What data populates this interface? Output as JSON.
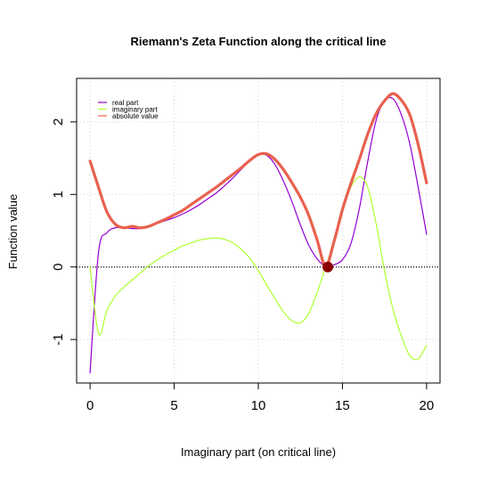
{
  "chart_data": {
    "type": "line",
    "title": "Riemann's Zeta Function along the critical line",
    "xlabel": "Imaginary part (on critical line)",
    "ylabel": "Function value",
    "xlim": [
      0,
      20
    ],
    "ylim": [
      -1.6,
      2.6
    ],
    "x_ticks": [
      "0",
      "5",
      "10",
      "15",
      "20"
    ],
    "y_ticks": [
      "-1",
      "0",
      "1",
      "2"
    ],
    "grid": true,
    "legend_position": "top-left",
    "x": [
      0,
      0.5,
      1,
      1.5,
      2,
      2.5,
      3,
      3.5,
      4,
      4.5,
      5,
      5.5,
      6,
      6.5,
      7,
      7.5,
      8,
      8.5,
      9,
      9.5,
      10,
      10.5,
      11,
      11.5,
      12,
      12.5,
      13,
      13.5,
      14,
      14.5,
      15,
      15.5,
      16,
      16.5,
      17,
      17.5,
      18,
      18.5,
      19,
      19.5,
      20
    ],
    "series": [
      {
        "name": "real part",
        "color": "#9400D3",
        "values": [
          -1.46,
          0.2,
          0.47,
          0.54,
          0.54,
          0.53,
          0.53,
          0.56,
          0.6,
          0.64,
          0.68,
          0.73,
          0.79,
          0.86,
          0.94,
          1.02,
          1.12,
          1.23,
          1.35,
          1.46,
          1.55,
          1.54,
          1.41,
          1.18,
          0.9,
          0.58,
          0.3,
          0.11,
          0.01,
          0.03,
          0.1,
          0.32,
          0.8,
          1.45,
          2.02,
          2.29,
          2.32,
          2.1,
          1.7,
          1.1,
          0.45
        ]
      },
      {
        "name": "imaginary part",
        "color": "#ADFF2F",
        "values": [
          0.0,
          -0.92,
          -0.6,
          -0.4,
          -0.28,
          -0.18,
          -0.08,
          0.02,
          0.1,
          0.17,
          0.23,
          0.29,
          0.33,
          0.37,
          0.39,
          0.4,
          0.38,
          0.33,
          0.24,
          0.12,
          -0.05,
          -0.25,
          -0.44,
          -0.62,
          -0.74,
          -0.77,
          -0.64,
          -0.35,
          0.0,
          0.35,
          0.78,
          1.1,
          1.24,
          1.1,
          0.6,
          -0.05,
          -0.58,
          -0.95,
          -1.22,
          -1.27,
          -1.08
        ]
      },
      {
        "name": "absolute value",
        "color": "#E9604F",
        "values": [
          1.46,
          1.1,
          0.76,
          0.59,
          0.54,
          0.56,
          0.54,
          0.56,
          0.61,
          0.66,
          0.72,
          0.78,
          0.86,
          0.94,
          1.02,
          1.1,
          1.19,
          1.28,
          1.37,
          1.47,
          1.55,
          1.56,
          1.48,
          1.34,
          1.16,
          0.96,
          0.71,
          0.37,
          0.01,
          0.35,
          0.79,
          1.15,
          1.48,
          1.83,
          2.11,
          2.29,
          2.39,
          2.3,
          2.1,
          1.69,
          1.16
        ]
      }
    ],
    "reference_line": {
      "y": 0,
      "style": "dotted",
      "color": "#000000"
    },
    "highlight_point": {
      "x": 14.13,
      "y": 0,
      "color": "#8B0000"
    }
  }
}
